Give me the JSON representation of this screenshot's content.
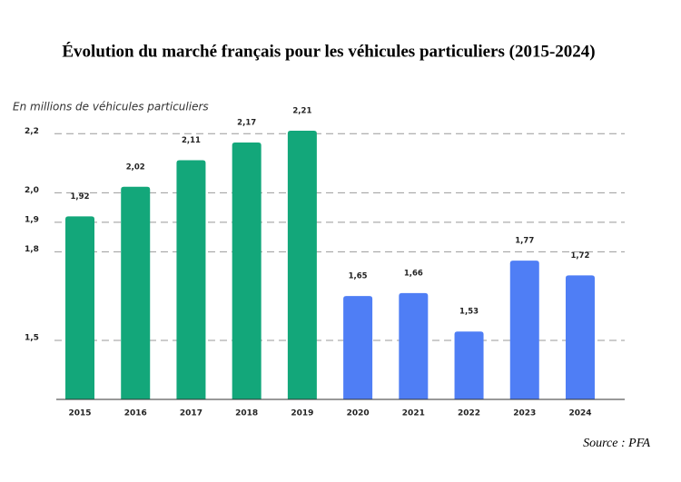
{
  "chart_data": {
    "type": "bar",
    "title": "Évolution du marché français pour les véhicules particuliers (2015-2024)",
    "subtitle": "En millions de véhicules particuliers",
    "source": "Source : PFA",
    "categories": [
      "2015",
      "2016",
      "2017",
      "2018",
      "2019",
      "2020",
      "2021",
      "2022",
      "2023",
      "2024"
    ],
    "values": [
      1.92,
      2.02,
      2.11,
      2.17,
      2.21,
      1.65,
      1.66,
      1.53,
      1.77,
      1.72
    ],
    "value_labels": [
      "1,92",
      "2,02",
      "2,11",
      "2,17",
      "2,21",
      "1,65",
      "1,66",
      "1,53",
      "1,77",
      "1,72"
    ],
    "colors": [
      "#13a77a",
      "#13a77a",
      "#13a77a",
      "#13a77a",
      "#13a77a",
      "#4f7ef5",
      "#4f7ef5",
      "#4f7ef5",
      "#4f7ef5",
      "#4f7ef5"
    ],
    "ylim": [
      1.3,
      2.25
    ],
    "yticks": [
      {
        "value": 1.5,
        "label": "1,5"
      },
      {
        "value": 1.8,
        "label": "1,8"
      },
      {
        "value": 1.9,
        "label": "1,9"
      },
      {
        "value": 2.0,
        "label": "2,0"
      },
      {
        "value": 2.2,
        "label": "2,2"
      }
    ],
    "grid": true
  }
}
